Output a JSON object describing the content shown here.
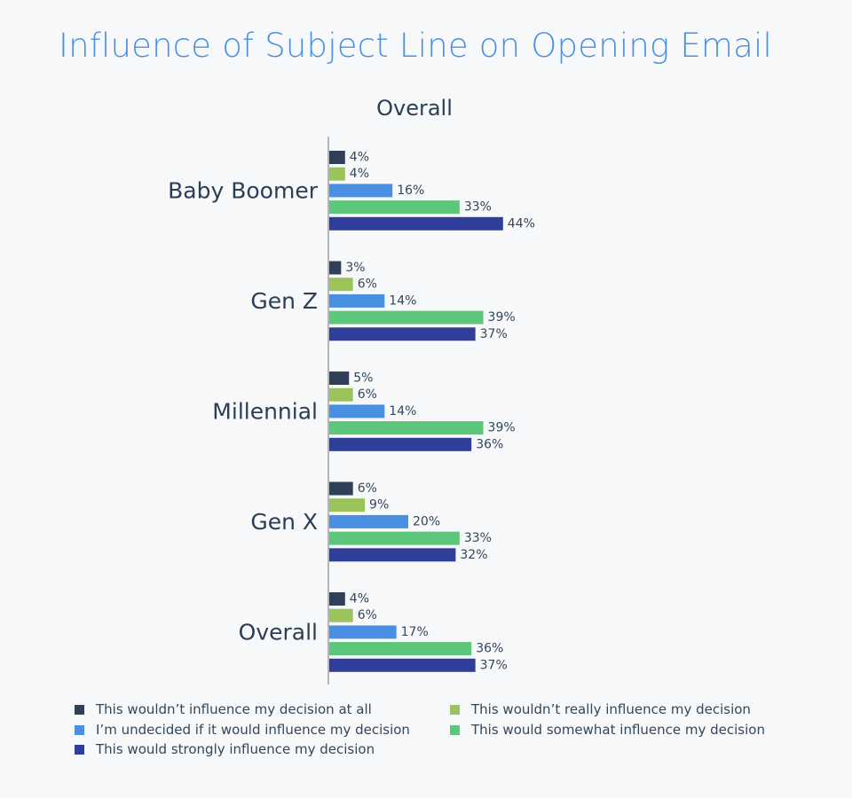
{
  "chart_data": {
    "type": "bar",
    "orientation": "horizontal",
    "title": "Influence of Subject Line on Opening Email",
    "subtitle": "Overall",
    "categories": [
      "Baby Boomer",
      "Gen Z",
      "Millennial",
      "Gen X",
      "Overall"
    ],
    "series": [
      {
        "name": "This wouldn’t influence my decision at all",
        "color": "#2f4058",
        "values": [
          4,
          3,
          5,
          6,
          4
        ]
      },
      {
        "name": "This wouldn’t really influence my decision",
        "color": "#9ac45a",
        "values": [
          4,
          6,
          6,
          9,
          6
        ]
      },
      {
        "name": "I’m undecided if it would influence my decision",
        "color": "#4a90e2",
        "values": [
          16,
          14,
          14,
          20,
          17
        ]
      },
      {
        "name": "This would somewhat influence my decision",
        "color": "#5cc77a",
        "values": [
          33,
          39,
          39,
          33,
          36
        ]
      },
      {
        "name": "This would strongly influence my decision",
        "color": "#2e3e99",
        "values": [
          44,
          37,
          36,
          32,
          37
        ]
      }
    ],
    "value_suffix": "%",
    "legend_position": "bottom",
    "grid": false
  }
}
